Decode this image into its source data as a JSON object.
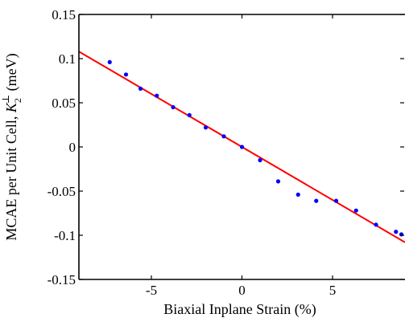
{
  "chart_data": {
    "type": "scatter",
    "title": "",
    "xlabel": "Biaxial Inplane Strain (%)",
    "ylabel": {
      "prefix": "MCAE per Unit Cell, ",
      "symbol": "K",
      "subscript": "2",
      "superscript": "⊥",
      "suffix": " (meV)"
    },
    "xlim": [
      -9,
      9
    ],
    "ylim": [
      -0.15,
      0.15
    ],
    "xticks": [
      {
        "value": -5,
        "label": "-5"
      },
      {
        "value": 0,
        "label": "0"
      },
      {
        "value": 5,
        "label": "5"
      }
    ],
    "yticks": [
      {
        "value": 0.15,
        "label": "0.15"
      },
      {
        "value": 0.1,
        "label": "0.1"
      },
      {
        "value": 0.05,
        "label": "0.05"
      },
      {
        "value": 0,
        "label": "0"
      },
      {
        "value": -0.05,
        "label": "-0.05"
      },
      {
        "value": -0.1,
        "label": "-0.1"
      },
      {
        "value": -0.15,
        "label": "-0.15"
      }
    ],
    "grid": false,
    "series": [
      {
        "kind": "points",
        "color": "#0000ff",
        "x": [
          -7.3,
          -6.4,
          -5.6,
          -4.7,
          -3.8,
          -2.9,
          -2.0,
          -1.0,
          0.0,
          1.0,
          2.0,
          3.1,
          4.1,
          5.2,
          6.3,
          7.4,
          8.5,
          8.8
        ],
        "y": [
          0.096,
          0.082,
          0.066,
          0.058,
          0.045,
          0.036,
          0.022,
          0.012,
          0.0,
          -0.015,
          -0.039,
          -0.054,
          -0.061,
          -0.061,
          -0.072,
          -0.088,
          -0.096,
          -0.099
        ]
      },
      {
        "kind": "line",
        "color": "#ff0000",
        "x": [
          -9,
          9
        ],
        "y": [
          0.108,
          -0.108
        ]
      }
    ]
  }
}
